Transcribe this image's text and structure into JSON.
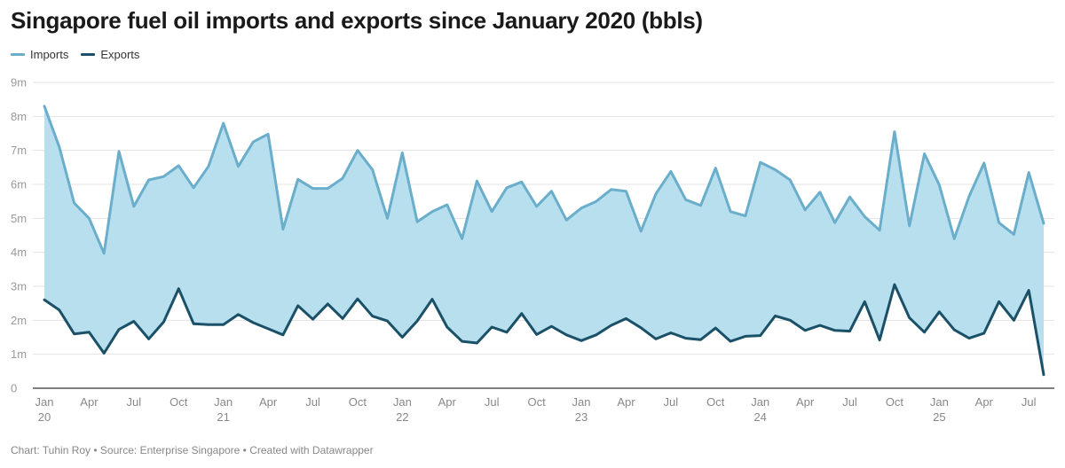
{
  "chart_data": {
    "type": "area",
    "title": "Singapore fuel oil imports and exports since January 2020 (bbls)",
    "xlabel": "",
    "ylabel": "",
    "ylim": [
      0,
      9
    ],
    "y_ticks": [
      0,
      1,
      2,
      3,
      4,
      5,
      6,
      7,
      8,
      9
    ],
    "y_tick_labels": [
      "0",
      "1m",
      "2m",
      "3m",
      "4m",
      "5m",
      "6m",
      "7m",
      "8m",
      "9m"
    ],
    "x_tick_labels": [
      {
        "month_index": 0,
        "line1": "Jan",
        "line2": "20"
      },
      {
        "month_index": 3,
        "line1": "Apr",
        "line2": ""
      },
      {
        "month_index": 6,
        "line1": "Jul",
        "line2": ""
      },
      {
        "month_index": 9,
        "line1": "Oct",
        "line2": ""
      },
      {
        "month_index": 12,
        "line1": "Jan",
        "line2": "21"
      },
      {
        "month_index": 15,
        "line1": "Apr",
        "line2": ""
      },
      {
        "month_index": 18,
        "line1": "Jul",
        "line2": ""
      },
      {
        "month_index": 21,
        "line1": "Oct",
        "line2": ""
      },
      {
        "month_index": 24,
        "line1": "Jan",
        "line2": "22"
      },
      {
        "month_index": 27,
        "line1": "Apr",
        "line2": ""
      },
      {
        "month_index": 30,
        "line1": "Jul",
        "line2": ""
      },
      {
        "month_index": 33,
        "line1": "Oct",
        "line2": ""
      },
      {
        "month_index": 36,
        "line1": "Jan",
        "line2": "23"
      },
      {
        "month_index": 39,
        "line1": "Apr",
        "line2": ""
      },
      {
        "month_index": 42,
        "line1": "Jul",
        "line2": ""
      },
      {
        "month_index": 45,
        "line1": "Oct",
        "line2": ""
      },
      {
        "month_index": 48,
        "line1": "Jan",
        "line2": "24"
      },
      {
        "month_index": 51,
        "line1": "Apr",
        "line2": ""
      },
      {
        "month_index": 54,
        "line1": "Jul",
        "line2": ""
      },
      {
        "month_index": 57,
        "line1": "Oct",
        "line2": ""
      },
      {
        "month_index": 60,
        "line1": "Jan",
        "line2": "25"
      },
      {
        "month_index": 63,
        "line1": "Apr",
        "line2": ""
      },
      {
        "month_index": 66,
        "line1": "Jul",
        "line2": ""
      }
    ],
    "grid": true,
    "legend": "top-left",
    "x_start": "2020-01",
    "x_end": "2025-08",
    "series": [
      {
        "name": "Imports",
        "color": "#6aaecb",
        "values": [
          8.3,
          7.1,
          5.45,
          5.0,
          3.97,
          6.97,
          5.35,
          6.13,
          6.23,
          6.55,
          5.9,
          6.53,
          7.8,
          6.53,
          7.25,
          7.48,
          4.68,
          6.15,
          5.88,
          5.88,
          6.18,
          7.0,
          6.43,
          5.0,
          6.93,
          4.9,
          5.2,
          5.4,
          4.4,
          6.1,
          5.2,
          5.9,
          6.07,
          5.35,
          5.8,
          4.95,
          5.3,
          5.5,
          5.85,
          5.8,
          4.62,
          5.72,
          6.38,
          5.55,
          5.38,
          6.48,
          5.2,
          5.07,
          6.65,
          6.43,
          6.13,
          5.25,
          5.77,
          4.87,
          5.63,
          5.05,
          4.65,
          7.55,
          4.78,
          6.9,
          5.98,
          4.4,
          5.65,
          6.63,
          4.87,
          4.53,
          6.35,
          4.85
        ]
      },
      {
        "name": "Exports",
        "color": "#1b5168",
        "values": [
          2.6,
          2.3,
          1.6,
          1.65,
          1.03,
          1.73,
          1.97,
          1.45,
          1.95,
          2.93,
          1.9,
          1.87,
          1.87,
          2.17,
          1.93,
          1.75,
          1.57,
          2.43,
          2.03,
          2.48,
          2.05,
          2.63,
          2.12,
          1.98,
          1.5,
          1.98,
          2.62,
          1.8,
          1.38,
          1.33,
          1.8,
          1.65,
          2.2,
          1.58,
          1.82,
          1.57,
          1.4,
          1.57,
          1.85,
          2.05,
          1.78,
          1.45,
          1.63,
          1.47,
          1.43,
          1.77,
          1.38,
          1.53,
          1.55,
          2.13,
          2.0,
          1.7,
          1.85,
          1.7,
          1.68,
          2.55,
          1.42,
          3.05,
          2.07,
          1.65,
          2.25,
          1.72,
          1.47,
          1.62,
          2.55,
          2.0,
          2.88,
          0.4
        ]
      }
    ]
  },
  "footer": "Chart: Tuhin Roy • Source: Enterprise Singapore • Created with Datawrapper"
}
